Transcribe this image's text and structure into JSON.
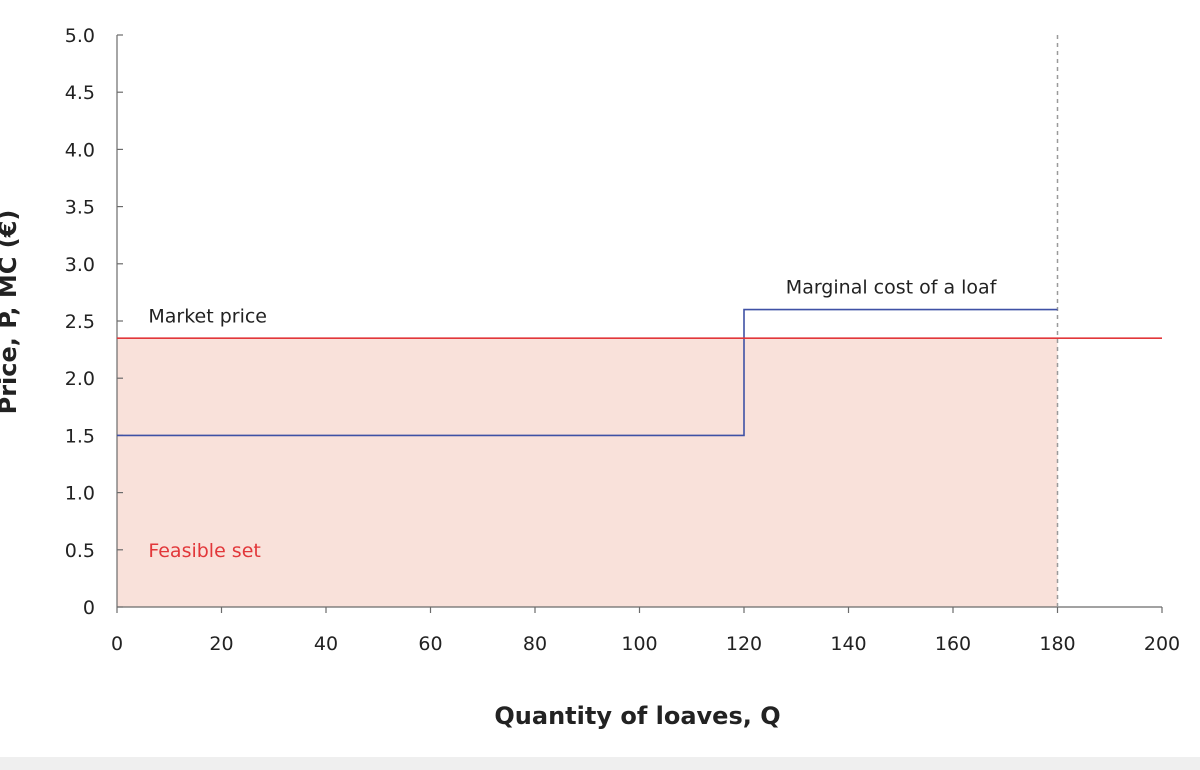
{
  "chart_data": {
    "type": "line",
    "title": "",
    "xlabel": "Quantity of loaves, Q",
    "ylabel": "Price, P, MC (€)",
    "xlim": [
      0,
      200
    ],
    "ylim": [
      0,
      5
    ],
    "x_ticks": [
      0,
      20,
      40,
      60,
      80,
      100,
      120,
      140,
      160,
      180,
      200
    ],
    "x_tick_labels": [
      "0",
      "20",
      "40",
      "60",
      "80",
      "100",
      "120",
      "140",
      "160",
      "180",
      "200"
    ],
    "y_ticks": [
      0,
      0.5,
      1.0,
      1.5,
      2.0,
      2.5,
      3.0,
      3.5,
      4.0,
      4.5,
      5.0
    ],
    "y_tick_labels": [
      "0",
      "0.5",
      "1.0",
      "1.5",
      "2.0",
      "2.5",
      "3.0",
      "3.5",
      "4.0",
      "4.5",
      "5.0"
    ],
    "grid": false,
    "series": [
      {
        "name": "Marginal cost of a loaf",
        "color": "#3f51a5",
        "shape": "step",
        "points": [
          [
            0,
            1.5
          ],
          [
            120,
            1.5
          ],
          [
            120,
            2.6
          ],
          [
            180,
            2.6
          ]
        ]
      },
      {
        "name": "Market price",
        "color": "#e2373a",
        "shape": "line",
        "points": [
          [
            0,
            2.35
          ],
          [
            200,
            2.35
          ]
        ]
      }
    ],
    "regions": [
      {
        "name": "Feasible set",
        "color": "#f9e1da",
        "x": [
          0,
          180
        ],
        "y": [
          0,
          2.35
        ]
      }
    ],
    "reference_lines": [
      {
        "axis": "x",
        "value": 180,
        "style": "dashed",
        "color": "#9a9a9a"
      }
    ],
    "annotations": [
      {
        "text": "Market price",
        "color": "#222222",
        "x": 6,
        "y": 2.55
      },
      {
        "text": "Marginal cost of a loaf",
        "color": "#222222",
        "x": 128,
        "y": 2.8
      },
      {
        "text": "Feasible set",
        "color": "#e2373a",
        "x": 6,
        "y": 0.5
      }
    ]
  }
}
